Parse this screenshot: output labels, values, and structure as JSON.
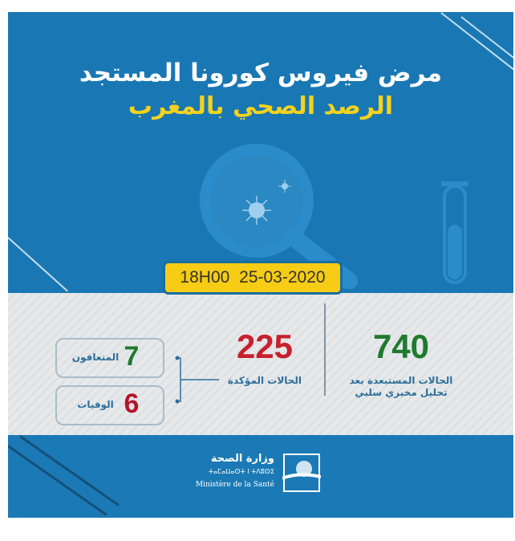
{
  "header": {
    "title": "مرض فيروس كورونا المستجد",
    "subtitle": "الرصد الصحي بالمغرب"
  },
  "date_badge": "18H00 25-03-2020",
  "stats": {
    "excluded": {
      "value": "740",
      "label_line1": "الحالات المستبعدة بعد",
      "label_line2": "تحليل مخبري سلبي",
      "color": "#1e7a2e"
    },
    "confirmed": {
      "value": "225",
      "label": "الحالات المؤكدة",
      "color": "#c8202c"
    },
    "recovered": {
      "value": "7",
      "label": "المتعافون",
      "color": "#1e7a2e"
    },
    "deaths": {
      "value": "6",
      "label": "الوفيات",
      "color": "#b3152a"
    }
  },
  "footer": {
    "logo_arabic": "وزارة الصحة",
    "logo_tifinagh": "ⵜⴰⵎⴰⵡⴰⵙⵜ ⵏ ⵜⴷⵓⵙⵉ",
    "logo_french": "Ministère de la Santé"
  },
  "colors": {
    "blue": "#1978b3",
    "yellow": "#f6cc14",
    "grey": "#e3e5e8"
  }
}
